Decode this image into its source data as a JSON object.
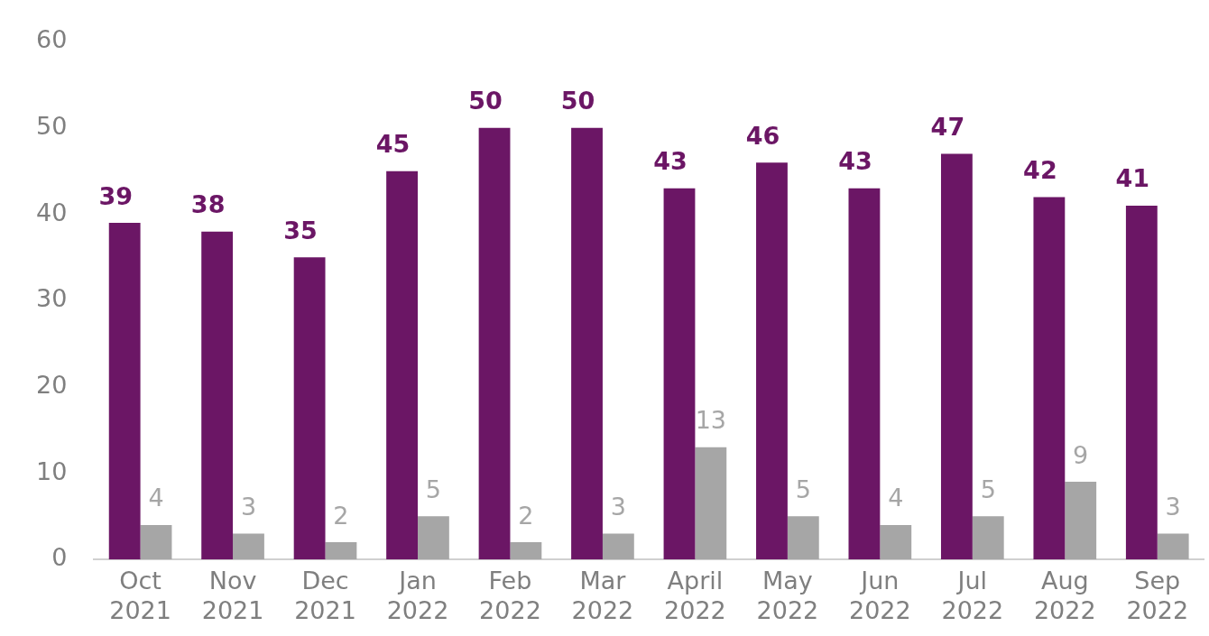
{
  "chart_data": {
    "type": "bar",
    "categories": [
      "Oct 2021",
      "Nov 2021",
      "Dec 2021",
      "Jan 2022",
      "Feb 2022",
      "Mar 2022",
      "April 2022",
      "May 2022",
      "Jun 2022",
      "Jul 2022",
      "Aug 2022",
      "Sep 2022"
    ],
    "series": [
      {
        "color": "#6b1665",
        "values": [
          39,
          38,
          35,
          45,
          50,
          50,
          43,
          46,
          43,
          47,
          42,
          41
        ]
      },
      {
        "color": "#a6a6a6",
        "values": [
          4,
          3,
          2,
          5,
          2,
          3,
          13,
          5,
          4,
          5,
          9,
          3
        ]
      }
    ],
    "ylim": [
      0,
      60
    ],
    "yticks": [
      0,
      10,
      20,
      30,
      40,
      50,
      60
    ],
    "grid": false,
    "legend": false,
    "data_labels": true
  }
}
